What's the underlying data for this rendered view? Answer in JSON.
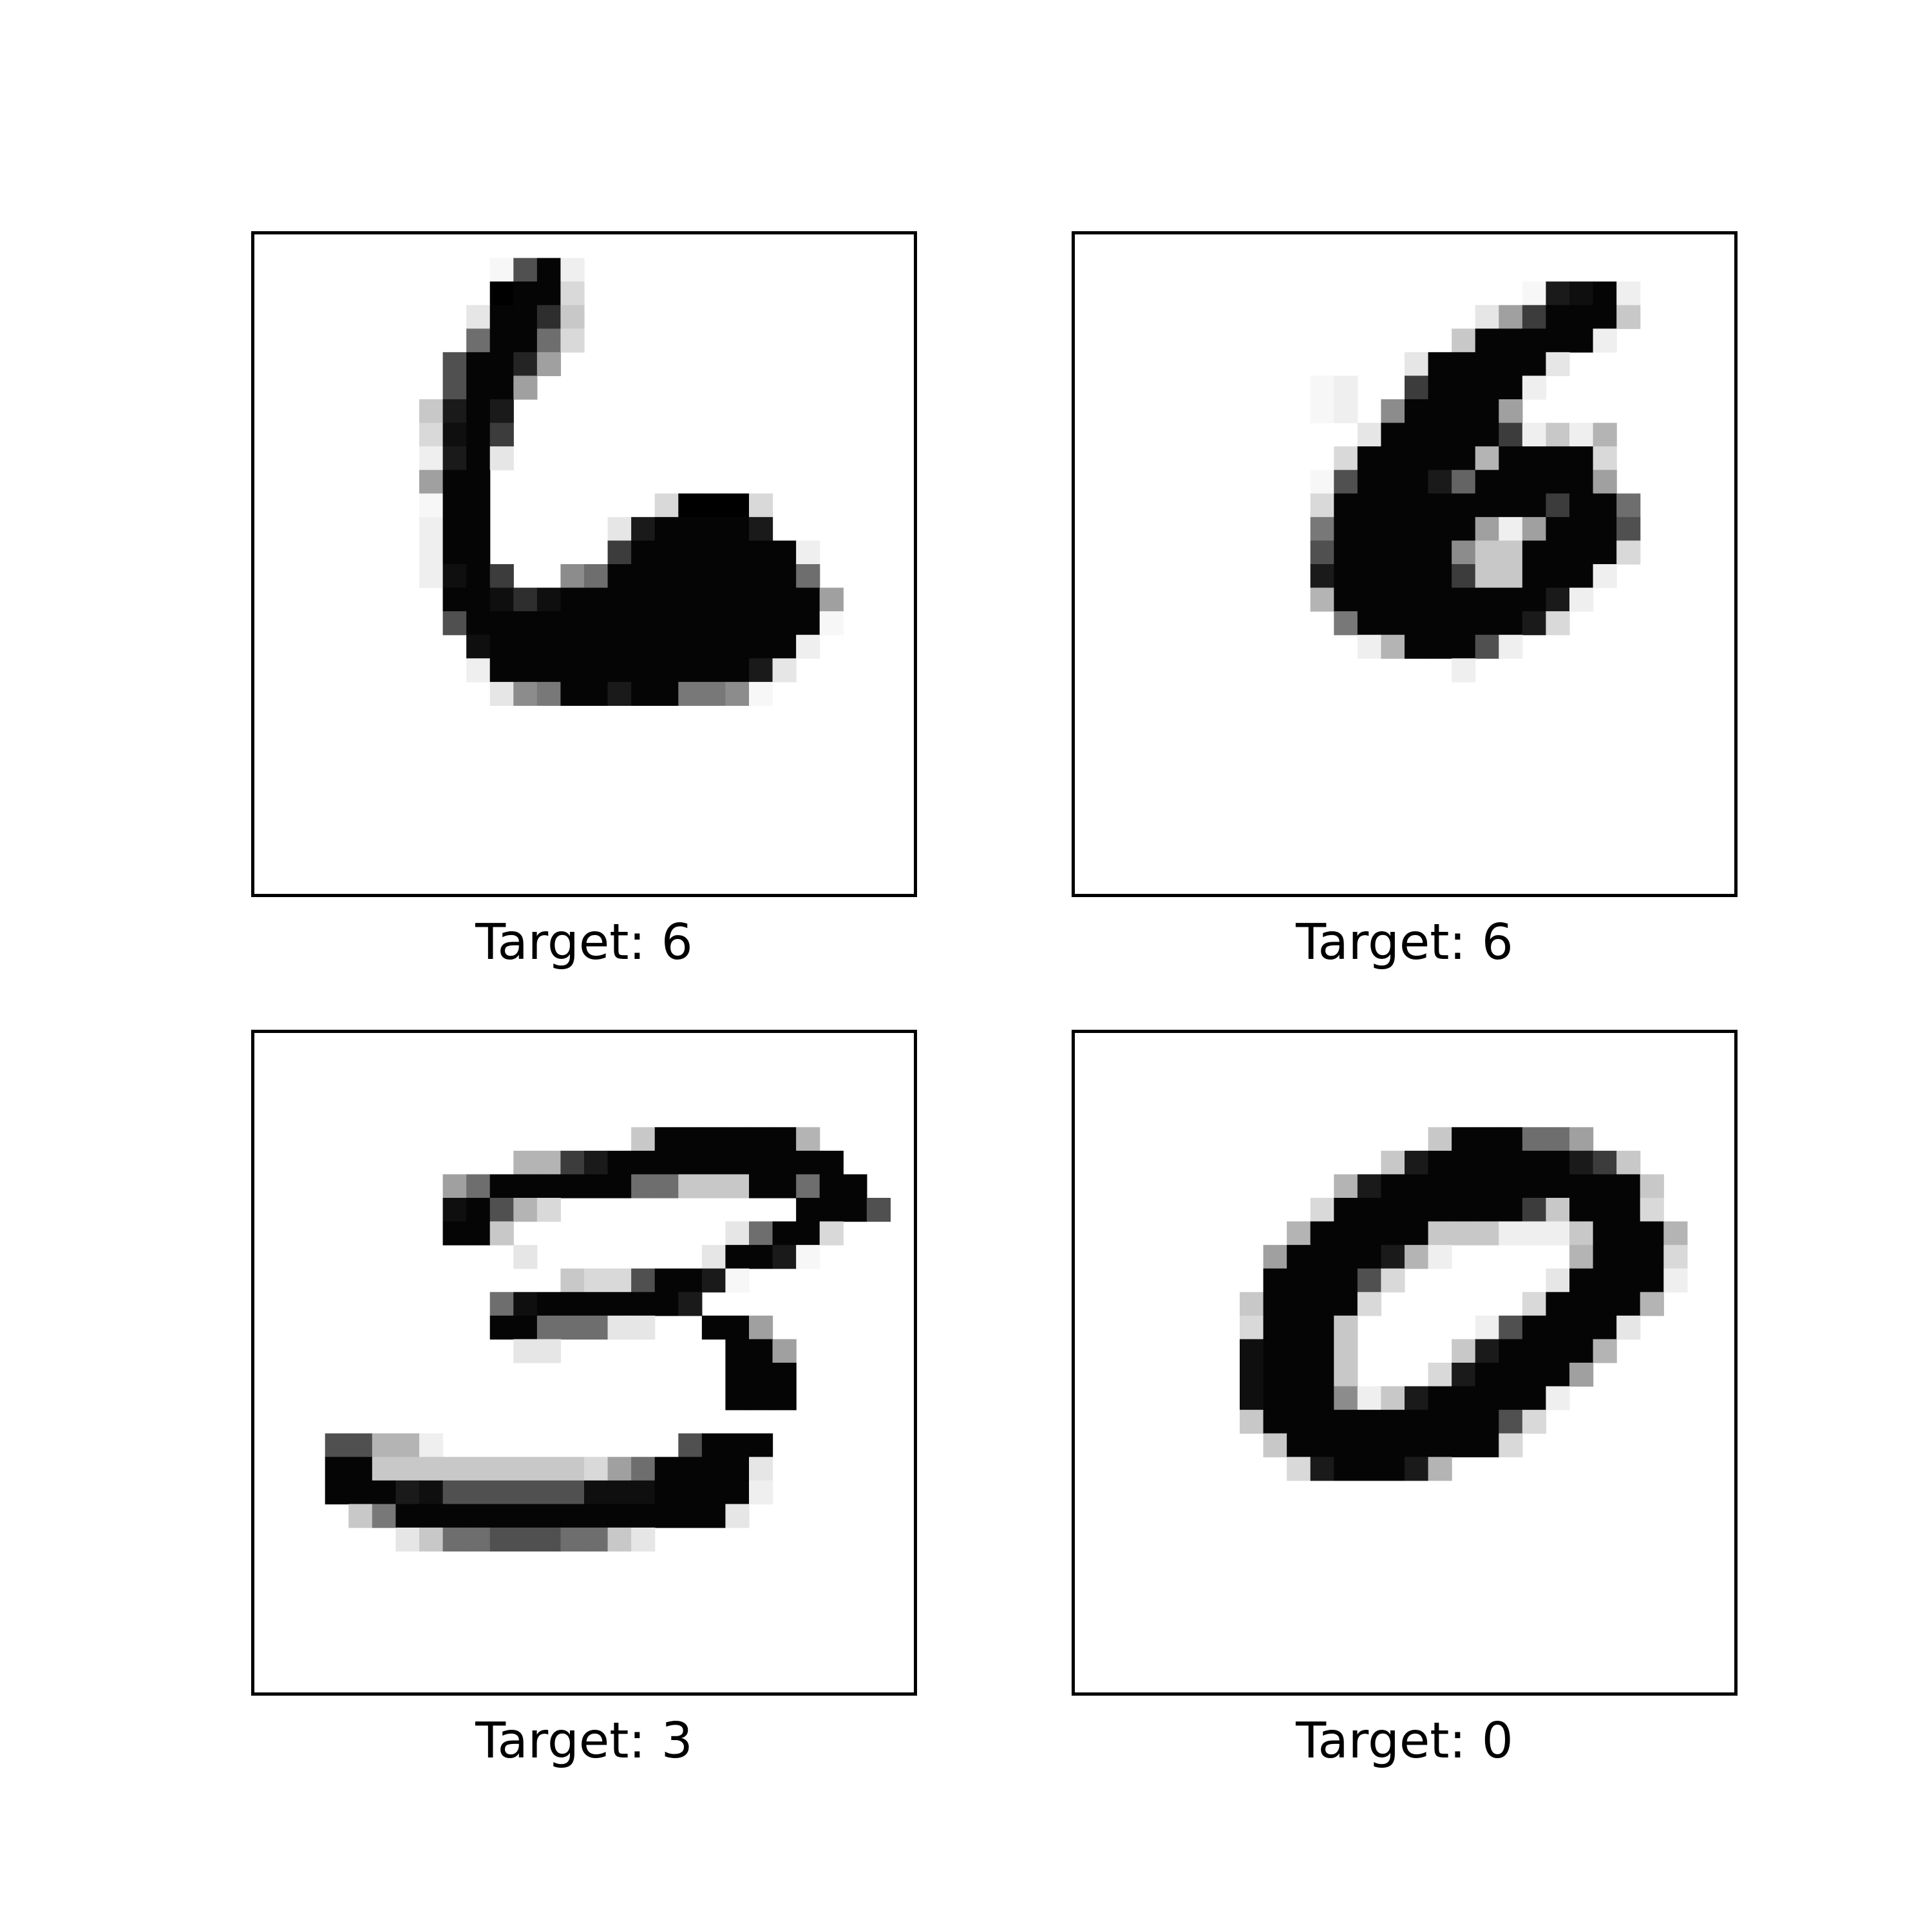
{
  "figure": {
    "panels": [
      {
        "caption": "Target: 6",
        "image_rows": [
          "............................",
          "..........aKOb..............",
          "..........HOOd..............",
          ".........cOOGe..............",
          ".........JOOJd..............",
          "........KOOIg...............",
          "........KOOg................",
          ".......eMOM.................",
          ".......dNOL.................",
          ".......bMOc.................",
          ".......gOO..................",
          ".......aOO.......dHHHd......",
          ".......bOO.....cMOOOOM......",
          ".......bOO.....LOOOOOOOb....",
          ".......bNOL..hJOOOOOOOOJ....",
          "........OONGNOOOOOOOOOOOg...",
          "........KOOOOOOOOOOOOOOOa...",
          ".........NOOOOOOOOOOOOOb....",
          ".........bOOOOOOOOOOOMc.....",
          "..........chiOOMOOiiha......",
          "............................",
          "............................",
          "............................",
          "............................",
          "............................",
          "............................",
          "............................",
          "............................"
        ]
      },
      {
        "caption": "Target: 6",
        "image_rows": [
          "............................",
          "............................",
          "...................aMNOb....",
          ".................cgLOOOe....",
          "................eOOOOOb.....",
          "..............cOOOOOc.......",
          "..........ab..LOOOOb........",
          "..........ab.hOOOOg.........",
          "............cOOOOOLbebf.....",
          "...........dOOOOOfOOOOd.....",
          "..........aKOOOMjOOOOOg.....",
          "..........dOOOOOOOOOLOOJ....",
          "..........iOOOOOOgbgOOOK....",
          "..........KOOOOOheeOOOOd....",
          "..........MOOOOOLeeOOOb.....",
          "..........fOOOOOOOOOMb......",
          "...........iOOOOOOOMd.......",
          "............bfOOOKb.........",
          "................b...........",
          "............................",
          "............................",
          "............................",
          "............................",
          "............................",
          "............................",
          "............................",
          "............................",
          "............................"
        ]
      },
      {
        "caption": "Target: 3",
        "image_rows": [
          "............................",
          "............................",
          "............................",
          "............................",
          "................eOOOOOOf....",
          "...........ffLMOOOOOOOOOO...",
          "........gJOOOOOOJJeeeOOJOO...",
          "........NOKfd..........OOOK..",
          "........OOe.........cJOOd...",
          "...........c.......cOOMa....",
          ".............eddKOOMa.......",
          "..........JNOOOOOOM.........",
          "..........OOJJJcc..OOg......",
          "...........cc.......OOg.....",
          "....................OOO.....",
          "....................OOO.....",
          "..........................",
          "...KKffb..........KOOO......",
          "...OOeeeeeeeeedgJOOOOc......",
          "...OOOMNKKKKKKNNNOOOOb......",
          "....eiOOOOOOOOOOOOOOc.......",
          "......ceJJKKKJJec...........",
          "............................",
          "............................",
          "............................",
          "............................",
          "............................",
          "............................"
        ]
      },
      {
        "caption": "Target: 0",
        "image_rows": [
          "............................",
          "............................",
          "............................",
          "............................",
          "...............eOOOJJg......",
          ".............eMOOOOOOMLe....",
          "...........fMOOOOOOOOOOOe...",
          "..........dOOOOOOOOLeOOOd...",
          ".........fOOOOOeeebbbeOOOf..",
          "........gOOOOMfb.....fOOOd..",
          "........OOOOKd......cOOOOb..",
          ".......eOOOOd......dOOOOf...",
          ".......dOOOe.....bKOOOOc....",
          ".......NOOOe....eMOOOOf.....",
          ".......NOOOe...dMOOOOg......",
          ".......NOOOhbeMOOOOOb.......",
          ".......eOOOOOOOOOOKd........",
          "........eOOOOOOOOOd.........",
          ".........dMOOOMf............",
          "............................",
          "............................",
          "............................",
          "............................",
          "............................",
          "............................",
          "............................",
          "............................",
          "............................"
        ]
      }
    ],
    "palette": {
      ".": "#ffffff",
      "a": "#f7f7f7",
      "b": "#efefef",
      "c": "#e6e6e6",
      "d": "#d9d9d9",
      "e": "#c8c8c8",
      "f": "#b4b4b4",
      "g": "#a0a0a0",
      "h": "#8c8c8c",
      "i": "#787878",
      "j": "#646464",
      "J": "#6e6e6e",
      "K": "#505050",
      "L": "#3c3c3c",
      "G": "#2e2e2e",
      "I": "#242424",
      "M": "#1a1a1a",
      "N": "#0f0f0f",
      "O": "#050505"
    }
  }
}
